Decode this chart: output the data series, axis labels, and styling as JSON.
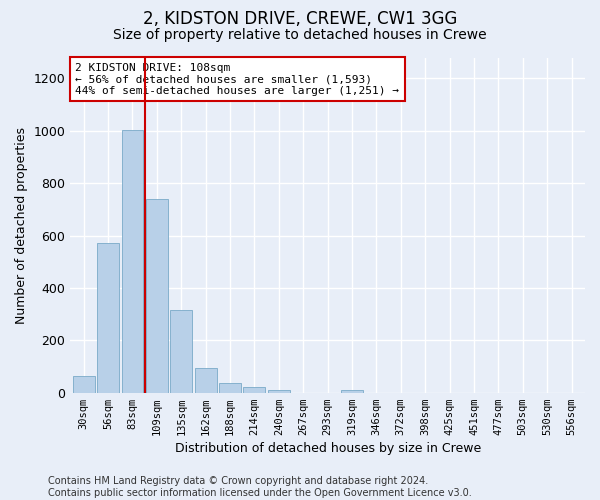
{
  "title": "2, KIDSTON DRIVE, CREWE, CW1 3GG",
  "subtitle": "Size of property relative to detached houses in Crewe",
  "xlabel": "Distribution of detached houses by size in Crewe",
  "ylabel": "Number of detached properties",
  "categories": [
    "30sqm",
    "56sqm",
    "83sqm",
    "109sqm",
    "135sqm",
    "162sqm",
    "188sqm",
    "214sqm",
    "240sqm",
    "267sqm",
    "293sqm",
    "319sqm",
    "346sqm",
    "372sqm",
    "398sqm",
    "425sqm",
    "451sqm",
    "477sqm",
    "503sqm",
    "530sqm",
    "556sqm"
  ],
  "values": [
    62,
    570,
    1005,
    740,
    315,
    95,
    37,
    22,
    12,
    0,
    0,
    12,
    0,
    0,
    0,
    0,
    0,
    0,
    0,
    0,
    0
  ],
  "bar_color": "#b8d0e8",
  "bar_edge_color": "#7aaac8",
  "highlight_line_color": "#cc0000",
  "annotation_text": "2 KIDSTON DRIVE: 108sqm\n← 56% of detached houses are smaller (1,593)\n44% of semi-detached houses are larger (1,251) →",
  "annotation_box_color": "#ffffff",
  "annotation_box_edge_color": "#cc0000",
  "ylim": [
    0,
    1280
  ],
  "yticks": [
    0,
    200,
    400,
    600,
    800,
    1000,
    1200
  ],
  "footer_text": "Contains HM Land Registry data © Crown copyright and database right 2024.\nContains public sector information licensed under the Open Government Licence v3.0.",
  "bg_color": "#e8eef8",
  "plot_bg_color": "#e8eef8",
  "grid_color": "#ffffff",
  "title_fontsize": 12,
  "subtitle_fontsize": 10,
  "footer_fontsize": 7
}
